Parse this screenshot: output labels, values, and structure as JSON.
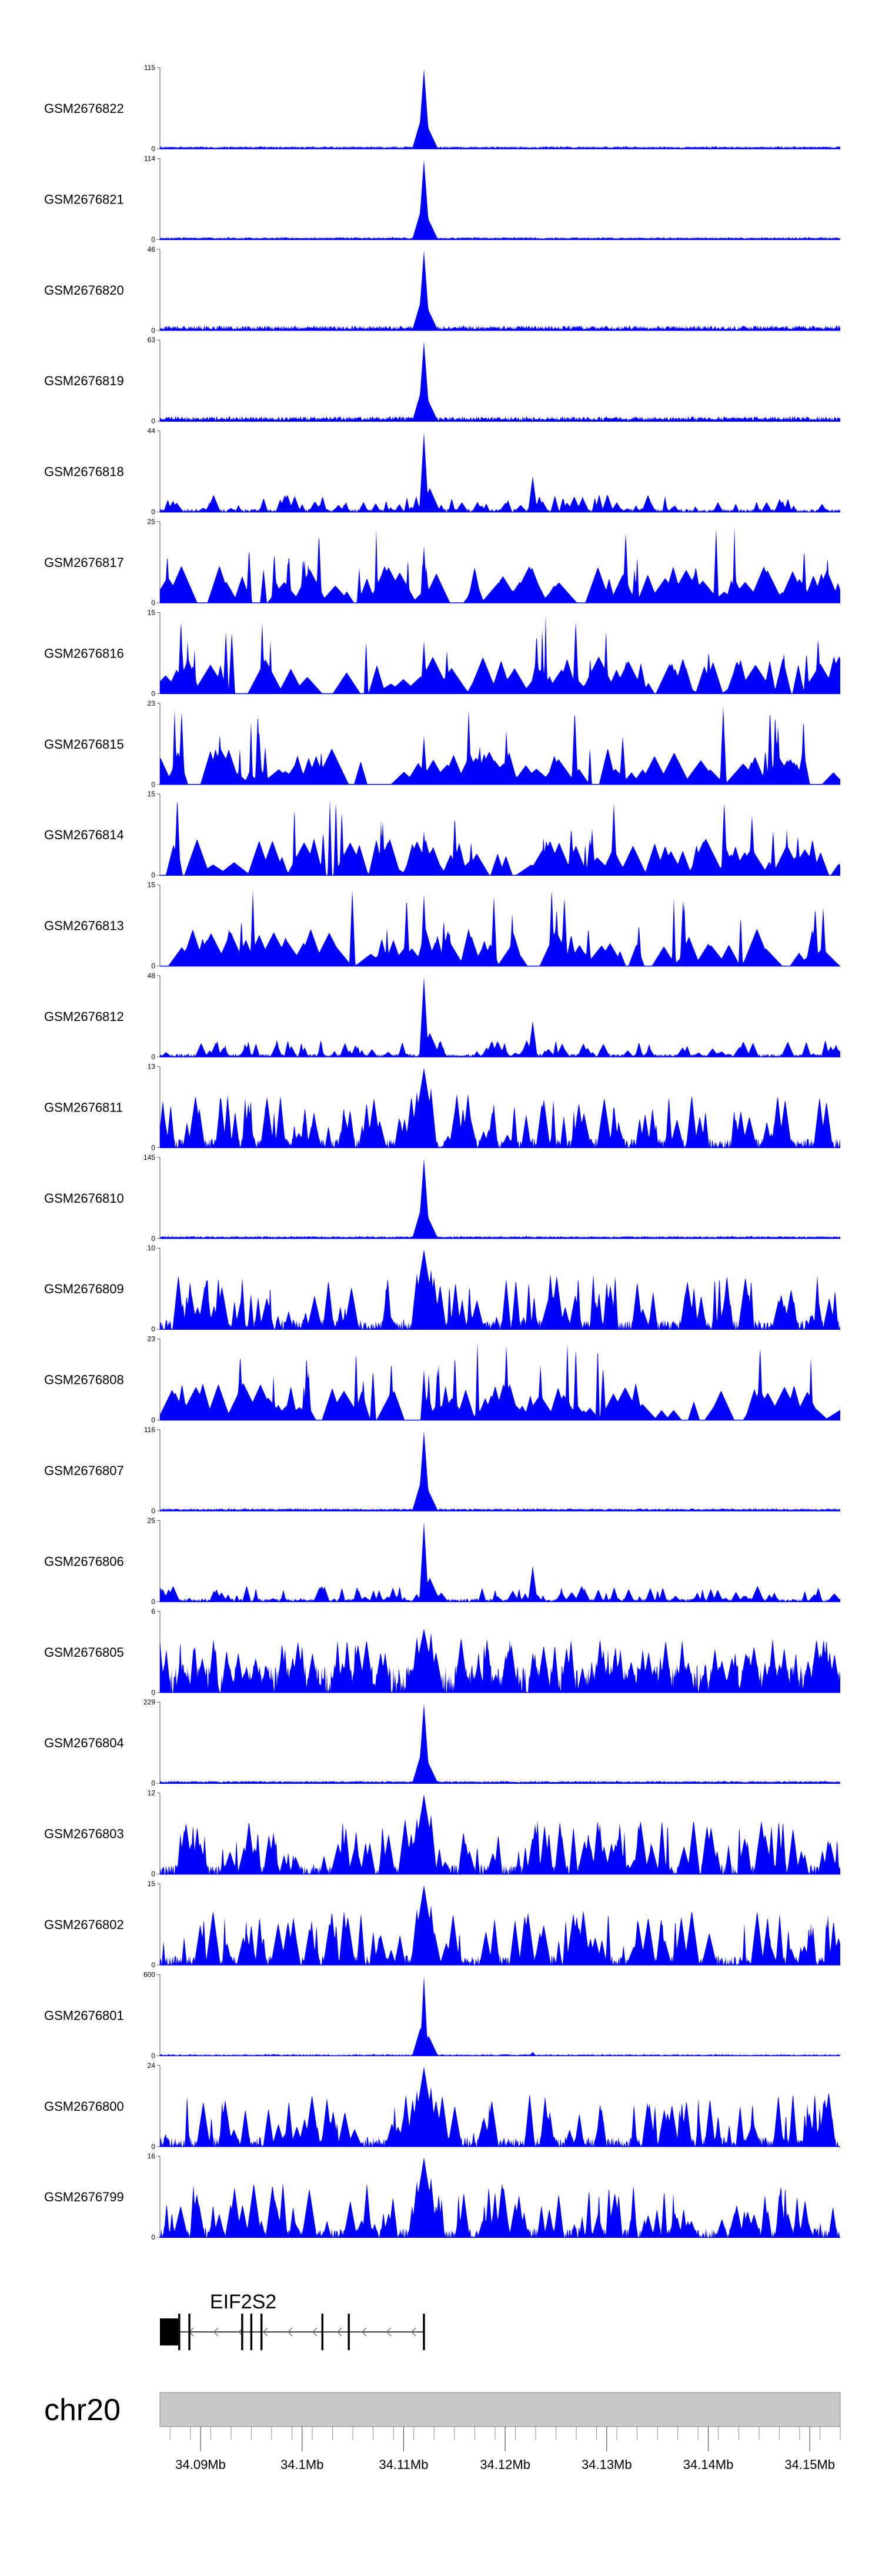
{
  "chart_data": {
    "type": "area",
    "colors": {
      "track_fill": "#0000ff",
      "axis": "#555555",
      "gene": "#000000",
      "ideogram_fill": "#c8c8c8",
      "ideogram_border": "#888888"
    },
    "xlim_bp": [
      34086000,
      34153000
    ],
    "peak_center_bp": 34112000,
    "tracks": [
      {
        "name": "GSM2676822",
        "ymax": "115",
        "ymin": "0",
        "style": "peak"
      },
      {
        "name": "GSM2676821",
        "ymax": "114",
        "ymin": "0",
        "style": "peak"
      },
      {
        "name": "GSM2676820",
        "ymax": "46",
        "ymin": "0",
        "style": "peak-noisy"
      },
      {
        "name": "GSM2676819",
        "ymax": "63",
        "ymin": "0",
        "style": "peak-noisy"
      },
      {
        "name": "GSM2676818",
        "ymax": "44",
        "ymin": "0",
        "style": "spiky"
      },
      {
        "name": "GSM2676817",
        "ymax": "25",
        "ymin": "0",
        "style": "sparse"
      },
      {
        "name": "GSM2676816",
        "ymax": "15",
        "ymin": "0",
        "style": "sparse"
      },
      {
        "name": "GSM2676815",
        "ymax": "23",
        "ymin": "0",
        "style": "sparse"
      },
      {
        "name": "GSM2676814",
        "ymax": "15",
        "ymin": "0",
        "style": "sparse"
      },
      {
        "name": "GSM2676813",
        "ymax": "15",
        "ymin": "0",
        "style": "sparse"
      },
      {
        "name": "GSM2676812",
        "ymax": "48",
        "ymin": "0",
        "style": "spiky"
      },
      {
        "name": "GSM2676811",
        "ymax": "13",
        "ymin": "0",
        "style": "dense"
      },
      {
        "name": "GSM2676810",
        "ymax": "145",
        "ymin": "0",
        "style": "peak"
      },
      {
        "name": "GSM2676809",
        "ymax": "10",
        "ymin": "0",
        "style": "dense"
      },
      {
        "name": "GSM2676808",
        "ymax": "23",
        "ymin": "0",
        "style": "sparse"
      },
      {
        "name": "GSM2676807",
        "ymax": "116",
        "ymin": "0",
        "style": "peak"
      },
      {
        "name": "GSM2676806",
        "ymax": "25",
        "ymin": "0",
        "style": "spiky"
      },
      {
        "name": "GSM2676805",
        "ymax": "6",
        "ymin": "0",
        "style": "dense-heavy"
      },
      {
        "name": "GSM2676804",
        "ymax": "229",
        "ymin": "0",
        "style": "peak"
      },
      {
        "name": "GSM2676803",
        "ymax": "12",
        "ymin": "0",
        "style": "dense"
      },
      {
        "name": "GSM2676802",
        "ymax": "15",
        "ymin": "0",
        "style": "dense"
      },
      {
        "name": "GSM2676801",
        "ymax": "600",
        "ymin": "0",
        "style": "peak-sharp"
      },
      {
        "name": "GSM2676800",
        "ymax": "24",
        "ymin": "0",
        "style": "dense"
      },
      {
        "name": "GSM2676799",
        "ymax": "16",
        "ymin": "0",
        "style": "dense"
      }
    ],
    "gene": {
      "name": "EIF2S2",
      "strand": "-",
      "start_bp": 34086000,
      "end_bp": 34112000,
      "exons_bp": [
        [
          34086000,
          34087800
        ],
        [
          34087800,
          34088000
        ],
        [
          34088800,
          34089000
        ],
        [
          34094000,
          34094200
        ],
        [
          34094900,
          34095100
        ],
        [
          34095900,
          34096100
        ],
        [
          34101900,
          34102100
        ],
        [
          34104500,
          34104700
        ],
        [
          34111900,
          34112100
        ]
      ]
    },
    "chromosome": "chr20",
    "x_ticks": [
      {
        "pos_bp": 34090000,
        "label": "34.09Mb"
      },
      {
        "pos_bp": 34100000,
        "label": "34.1Mb"
      },
      {
        "pos_bp": 34110000,
        "label": "34.11Mb"
      },
      {
        "pos_bp": 34120000,
        "label": "34.12Mb"
      },
      {
        "pos_bp": 34130000,
        "label": "34.13Mb"
      },
      {
        "pos_bp": 34140000,
        "label": "34.14Mb"
      },
      {
        "pos_bp": 34150000,
        "label": "34.15Mb"
      }
    ]
  }
}
